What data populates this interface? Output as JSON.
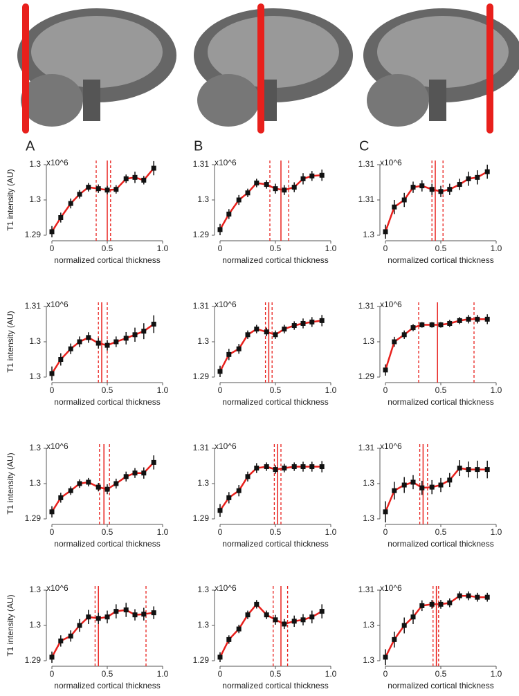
{
  "chart_data": [
    {
      "type": "line",
      "panel": "A",
      "ylabel": "T1 intensity (AU)",
      "annotation": "x10^6",
      "xlabel": "normalized cortical thickness",
      "x": [
        0,
        0.08,
        0.17,
        0.25,
        0.33,
        0.42,
        0.5,
        0.58,
        0.67,
        0.75,
        0.83,
        0.92
      ],
      "values": [
        1.2905,
        1.2925,
        1.2945,
        1.2958,
        1.2968,
        1.2966,
        1.2964,
        1.2965,
        1.298,
        1.2982,
        1.2978,
        1.2995
      ],
      "errors": [
        0.0008,
        0.0007,
        0.0007,
        0.0006,
        0.0006,
        0.0006,
        0.0006,
        0.0006,
        0.0006,
        0.0008,
        0.0006,
        0.001
      ],
      "xlim": [
        0,
        1
      ],
      "xticks": [
        0,
        0.5,
        {
          "value": 1,
          "label": "1.0"
        }
      ],
      "ylim": [
        1.29,
        1.3
      ],
      "yticks": [
        1.29,
        {
          "value": 1.295,
          "label": "1.3"
        },
        1.3
      ],
      "vlines_solid": [
        0.5
      ],
      "vlines_dashed": [
        0.4,
        0.53
      ],
      "color": "#e8201c"
    },
    {
      "type": "line",
      "panel": "B",
      "annotation": "x10^6",
      "xlabel": "normalized cortical thickness",
      "x": [
        0,
        0.08,
        0.17,
        0.25,
        0.33,
        0.42,
        0.5,
        0.58,
        0.67,
        0.75,
        0.83,
        0.92
      ],
      "values": [
        1.2916,
        1.296,
        1.3,
        1.302,
        1.3048,
        1.3044,
        1.3032,
        1.3028,
        1.3036,
        1.306,
        1.3068,
        1.307
      ],
      "errors": [
        0.0016,
        0.0014,
        0.0014,
        0.0012,
        0.0012,
        0.0012,
        0.0014,
        0.0014,
        0.0014,
        0.0016,
        0.0014,
        0.0016
      ],
      "xlim": [
        0,
        1
      ],
      "xticks": [
        0,
        0.5,
        {
          "value": 1,
          "label": "1.0"
        }
      ],
      "ylim": [
        1.29,
        1.31
      ],
      "yticks": [
        1.29,
        1.3,
        1.31
      ],
      "vlines_solid": [
        0.55
      ],
      "vlines_dashed": [
        0.45,
        0.62
      ],
      "color": "#e8201c"
    },
    {
      "type": "line",
      "panel": "C",
      "annotation": "x10^6",
      "xlabel": "normalized cortical thickness",
      "x": [
        0,
        0.08,
        0.17,
        0.25,
        0.33,
        0.42,
        0.5,
        0.58,
        0.67,
        0.75,
        0.83,
        0.92
      ],
      "values": [
        1.3005,
        1.304,
        1.305,
        1.3068,
        1.307,
        1.3065,
        1.3062,
        1.3065,
        1.3072,
        1.308,
        1.3082,
        1.309
      ],
      "errors": [
        0.001,
        0.001,
        0.001,
        0.0008,
        0.0008,
        0.0008,
        0.0008,
        0.0008,
        0.0008,
        0.001,
        0.001,
        0.001
      ],
      "xlim": [
        0,
        1
      ],
      "xticks": [
        0,
        0.5,
        {
          "value": 1,
          "label": "1.0"
        }
      ],
      "ylim": [
        1.3,
        1.31
      ],
      "yticks": [
        1.3,
        {
          "value": 1.305,
          "label": "1.31"
        },
        1.31
      ],
      "vlines_solid": [
        0.45
      ],
      "vlines_dashed": [
        0.42,
        0.52
      ],
      "color": "#e8201c"
    },
    {
      "type": "line",
      "ylabel": "T1 intensity (AU)",
      "annotation": "x10^6",
      "xlabel": "normalized cortical thickness",
      "x": [
        0,
        0.08,
        0.17,
        0.25,
        0.33,
        0.42,
        0.5,
        0.58,
        0.67,
        0.75,
        0.83,
        0.92
      ],
      "values": [
        1.3004,
        1.302,
        1.3032,
        1.304,
        1.30448,
        1.30384,
        1.3036,
        1.304,
        1.3044,
        1.3048,
        1.3052,
        1.306
      ],
      "errors": [
        0.0008,
        0.0007,
        0.0006,
        0.0006,
        0.0006,
        0.0006,
        0.0006,
        0.0006,
        0.0007,
        0.0008,
        0.0009,
        0.001
      ],
      "xlim": [
        0,
        1
      ],
      "xticks": [
        0,
        0.5,
        {
          "value": 1,
          "label": "1.0"
        }
      ],
      "ylim": [
        1.3,
        1.308
      ],
      "yticks": [
        1.3,
        {
          "value": 1.304,
          "label": "1.3"
        },
        {
          "value": 1.308,
          "label": "1.31"
        }
      ],
      "vlines_solid": [
        0.45
      ],
      "vlines_dashed": [
        0.42,
        0.5
      ],
      "color": "#e8201c"
    },
    {
      "type": "line",
      "annotation": "x10^6",
      "xlabel": "normalized cortical thickness",
      "x": [
        0,
        0.08,
        0.17,
        0.25,
        0.33,
        0.42,
        0.5,
        0.58,
        0.67,
        0.75,
        0.83,
        0.92
      ],
      "values": [
        1.2916,
        1.2964,
        1.298,
        1.302,
        1.3036,
        1.3028,
        1.302,
        1.3036,
        1.3046,
        1.3052,
        1.3056,
        1.306
      ],
      "errors": [
        0.0016,
        0.0016,
        0.0014,
        0.0012,
        0.0012,
        0.0012,
        0.0012,
        0.0012,
        0.0012,
        0.0014,
        0.0014,
        0.0016
      ],
      "xlim": [
        0,
        1
      ],
      "xticks": [
        0,
        0.5,
        {
          "value": 1,
          "label": "1.0"
        }
      ],
      "ylim": [
        1.29,
        1.31
      ],
      "yticks": [
        1.29,
        1.3,
        1.31
      ],
      "vlines_solid": [
        0.44
      ],
      "vlines_dashed": [
        0.41,
        0.47
      ],
      "color": "#e8201c"
    },
    {
      "type": "line",
      "annotation": "x10^6",
      "xlabel": "normalized cortical thickness",
      "x": [
        0,
        0.08,
        0.17,
        0.25,
        0.33,
        0.42,
        0.5,
        0.58,
        0.67,
        0.75,
        0.83,
        0.92
      ],
      "values": [
        1.292,
        1.3,
        1.302,
        1.304,
        1.3048,
        1.3048,
        1.3048,
        1.3052,
        1.306,
        1.3064,
        1.3064,
        1.3064
      ],
      "errors": [
        0.0016,
        0.0014,
        0.0012,
        0.001,
        0.0008,
        0.0008,
        0.0008,
        0.001,
        0.001,
        0.0012,
        0.0012,
        0.0014
      ],
      "xlim": [
        0,
        1
      ],
      "xticks": [
        0,
        0.5,
        {
          "value": 1,
          "label": "1.0"
        }
      ],
      "ylim": [
        1.29,
        1.31
      ],
      "yticks": [
        1.29,
        1.3,
        1.31
      ],
      "vlines_solid": [
        0.47
      ],
      "vlines_dashed": [
        0.3,
        0.8
      ],
      "color": "#e8201c"
    },
    {
      "type": "line",
      "ylabel": "T1 intensity (AU)",
      "annotation": "x10^6",
      "xlabel": "normalized cortical thickness",
      "x": [
        0,
        0.08,
        0.17,
        0.25,
        0.33,
        0.42,
        0.5,
        0.58,
        0.67,
        0.75,
        0.83,
        0.92
      ],
      "values": [
        1.291,
        1.293,
        1.294,
        1.295,
        1.2952,
        1.2945,
        1.2942,
        1.295,
        1.296,
        1.2965,
        1.2965,
        1.298
      ],
      "errors": [
        0.0008,
        0.0007,
        0.0006,
        0.0006,
        0.0006,
        0.0006,
        0.0007,
        0.0007,
        0.0007,
        0.0007,
        0.0008,
        0.001
      ],
      "xlim": [
        0,
        1
      ],
      "xticks": [
        0,
        0.5,
        {
          "value": 1,
          "label": "1.0"
        }
      ],
      "ylim": [
        1.29,
        1.3
      ],
      "yticks": [
        1.29,
        {
          "value": 1.295,
          "label": "1.3"
        },
        1.3
      ],
      "vlines_solid": [
        0.47
      ],
      "vlines_dashed": [
        0.43,
        0.52
      ],
      "color": "#e8201c"
    },
    {
      "type": "line",
      "annotation": "x10^6",
      "xlabel": "normalized cortical thickness",
      "x": [
        0,
        0.08,
        0.17,
        0.25,
        0.33,
        0.42,
        0.5,
        0.58,
        0.67,
        0.75,
        0.83,
        0.92
      ],
      "values": [
        1.2924,
        1.296,
        1.298,
        1.302,
        1.3044,
        1.3048,
        1.304,
        1.3044,
        1.3048,
        1.3048,
        1.3048,
        1.3048
      ],
      "errors": [
        0.0018,
        0.0016,
        0.0016,
        0.0014,
        0.0014,
        0.0012,
        0.0012,
        0.0012,
        0.0012,
        0.0014,
        0.0014,
        0.0016
      ],
      "xlim": [
        0,
        1
      ],
      "xticks": [
        0,
        0.5,
        {
          "value": 1,
          "label": "1.0"
        }
      ],
      "ylim": [
        1.29,
        1.31
      ],
      "yticks": [
        1.29,
        1.3,
        1.31
      ],
      "vlines_solid": [
        0.52
      ],
      "vlines_dashed": [
        0.49,
        0.55
      ],
      "color": "#e8201c"
    },
    {
      "type": "line",
      "annotation": "x10^6",
      "xlabel": "normalized cortical thickness",
      "x": [
        0,
        0.08,
        0.17,
        0.25,
        0.33,
        0.42,
        0.5,
        0.58,
        0.67,
        0.75,
        0.83,
        0.92
      ],
      "values": [
        1.3008,
        1.3032,
        1.30384,
        1.30416,
        1.30352,
        1.3036,
        1.30384,
        1.3044,
        1.30576,
        1.3056,
        1.3056,
        1.3056
      ],
      "errors": [
        0.0012,
        0.001,
        0.0009,
        0.0008,
        0.0008,
        0.0008,
        0.0008,
        0.0008,
        0.0009,
        0.0009,
        0.001,
        0.001
      ],
      "xlim": [
        0,
        1
      ],
      "xticks": [
        0,
        0.5,
        {
          "value": 1,
          "label": "1.0"
        }
      ],
      "ylim": [
        1.3,
        1.308
      ],
      "yticks": [
        1.3,
        {
          "value": 1.304,
          "label": "1.3"
        },
        {
          "value": 1.308,
          "label": "1.31"
        }
      ],
      "vlines_solid": [
        0.34
      ],
      "vlines_dashed": [
        0.31,
        0.38
      ],
      "color": "#e8201c"
    },
    {
      "type": "line",
      "ylabel": "T1 intensity (AU)",
      "annotation": "x10^6",
      "xlabel": "normalized cortical thickness",
      "x": [
        0,
        0.08,
        0.17,
        0.25,
        0.33,
        0.42,
        0.5,
        0.58,
        0.67,
        0.75,
        0.83,
        0.92
      ],
      "values": [
        1.2905,
        1.2928,
        1.2935,
        1.295,
        1.2962,
        1.296,
        1.2962,
        1.297,
        1.2972,
        1.2965,
        1.2966,
        1.2968
      ],
      "errors": [
        0.0008,
        0.0008,
        0.0008,
        0.0009,
        0.001,
        0.0008,
        0.0009,
        0.001,
        0.001,
        0.0008,
        0.0009,
        0.0009
      ],
      "xlim": [
        0,
        1
      ],
      "xticks": [
        0,
        0.5,
        {
          "value": 1,
          "label": "1.0"
        }
      ],
      "ylim": [
        1.29,
        1.3
      ],
      "yticks": [
        1.29,
        {
          "value": 1.295,
          "label": "1.3"
        },
        1.3
      ],
      "vlines_solid": [
        0.42
      ],
      "vlines_dashed": [
        0.39,
        0.85
      ],
      "color": "#e8201c"
    },
    {
      "type": "line",
      "annotation": "x10^6",
      "xlabel": "normalized cortical thickness",
      "x": [
        0,
        0.08,
        0.17,
        0.25,
        0.33,
        0.42,
        0.5,
        0.58,
        0.67,
        0.75,
        0.83,
        0.92
      ],
      "values": [
        1.2905,
        1.293,
        1.2945,
        1.2965,
        1.298,
        1.2965,
        1.2958,
        1.2952,
        1.2956,
        1.2958,
        1.2962,
        1.297
      ],
      "errors": [
        0.0007,
        0.0006,
        0.0006,
        0.0006,
        0.0006,
        0.0006,
        0.0007,
        0.0007,
        0.0008,
        0.0008,
        0.0009,
        0.001
      ],
      "xlim": [
        0,
        1
      ],
      "xticks": [
        0,
        0.5,
        {
          "value": 1,
          "label": "1.0"
        }
      ],
      "ylim": [
        1.29,
        1.3
      ],
      "yticks": [
        1.29,
        {
          "value": 1.295,
          "label": "1.3"
        },
        1.3
      ],
      "vlines_solid": [
        0.55
      ],
      "vlines_dashed": [
        0.48,
        0.61
      ],
      "color": "#e8201c"
    },
    {
      "type": "line",
      "annotation": "x10^6",
      "xlabel": "normalized cortical thickness",
      "x": [
        0,
        0.08,
        0.17,
        0.25,
        0.33,
        0.42,
        0.5,
        0.58,
        0.67,
        0.75,
        0.83,
        0.92
      ],
      "values": [
        1.3004,
        1.3024,
        1.304,
        1.30496,
        1.30624,
        1.3064,
        1.3064,
        1.30656,
        1.30736,
        1.30736,
        1.3072,
        1.3072
      ],
      "errors": [
        0.0009,
        0.0009,
        0.0009,
        0.0008,
        0.0006,
        0.0005,
        0.0005,
        0.0005,
        0.0005,
        0.0005,
        0.0005,
        0.0005
      ],
      "xlim": [
        0,
        1
      ],
      "xticks": [
        0,
        0.5,
        {
          "value": 1,
          "label": "1.0"
        }
      ],
      "ylim": [
        1.3,
        1.308
      ],
      "yticks": [
        1.3,
        {
          "value": 1.304,
          "label": "1.3"
        },
        {
          "value": 1.308,
          "label": "1.31"
        }
      ],
      "vlines_solid": [
        0.46
      ],
      "vlines_dashed": [
        0.43,
        0.48
      ],
      "color": "#e8201c"
    }
  ]
}
